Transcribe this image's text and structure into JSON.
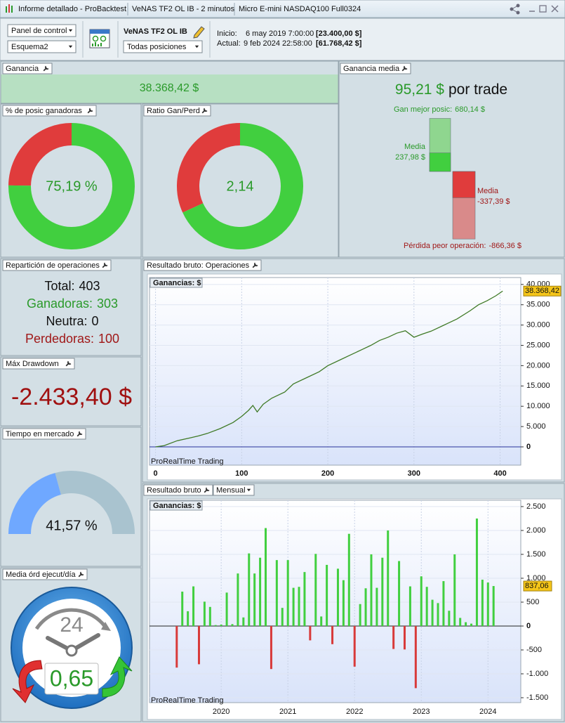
{
  "window": {
    "title": "Informe detallado - ProBacktest",
    "system": "VeNAS TF2 OL IB - 2 minutos",
    "instrument": "Micro E-mini NASDAQ100 Full0324"
  },
  "toolbar": {
    "panel_select": "Panel de control",
    "scheme_select": "Esquema2",
    "system_name": "VeNAS TF2 OL IB",
    "positions_select": "Todas posiciones",
    "start_label": "Inicio:",
    "start_date": "6 may 2019 7:00:00",
    "start_capital": "[23.400,00 $]",
    "current_label": "Actual:",
    "current_date": "9 feb 2024 22:58:00",
    "current_capital": "[61.768,42 $]"
  },
  "gain": {
    "title": "Ganancia",
    "value": "38.368,42 $"
  },
  "avg_gain": {
    "title": "Ganancia media",
    "value": "95,21 $",
    "suffix": "por trade",
    "best": {
      "label": "Gan mejor posic:",
      "value": 680.14,
      "value_label": "680,14 $"
    },
    "avg_win": {
      "label": "Media",
      "value": 237.98,
      "value_label": "237,98 $"
    },
    "avg_loss": {
      "label": "Media",
      "value": -337.39,
      "value_label": "-337,39 $"
    },
    "worst": {
      "label": "Pérdida peor operación:",
      "value": -866.36,
      "value_label": "-866,36 $"
    }
  },
  "win_rate": {
    "type": "donut",
    "title": "% de posic ganadoras",
    "value": 75.19,
    "value_label": "75,19 %",
    "color": "#41cf3f",
    "rest_color": "#e03c3c"
  },
  "ratio": {
    "type": "donut-ratio",
    "title": "Ratio Gan/Perd",
    "value": 2.14,
    "value_label": "2,14",
    "color": "#41cf3f",
    "rest_color": "#e03c3c"
  },
  "trades": {
    "title": "Repartición de operaciones",
    "rows": [
      {
        "label": "Total:",
        "value": 403,
        "color": "#111111"
      },
      {
        "label": "Ganadoras:",
        "value": 303,
        "color": "#2a9a2a"
      },
      {
        "label": "Neutra:",
        "value": 0,
        "color": "#111111"
      },
      {
        "label": "Perdedoras:",
        "value": 100,
        "color": "#a01818"
      }
    ]
  },
  "drawdown": {
    "title": "Máx Drawdown",
    "value": "-2.433,40 $"
  },
  "market_time": {
    "type": "gauge",
    "title": "Tiempo en mercado",
    "value": 41.57,
    "value_label": "41,57 %",
    "color": "#6fa8ff",
    "rest_color": "#a9c3cf"
  },
  "orders_per_day": {
    "title": "Media órd ejecut/día",
    "clock_label": "24",
    "value": "0,65"
  },
  "equity_chart": {
    "type": "line",
    "title": "Resultado bruto: Operaciones",
    "legend": "Ganancias: $",
    "watermark": "ProRealTime Trading",
    "x": [
      0,
      10,
      25,
      40,
      50,
      60,
      75,
      90,
      100,
      108,
      113,
      118,
      125,
      135,
      150,
      160,
      175,
      190,
      200,
      215,
      225,
      240,
      250,
      260,
      270,
      280,
      290,
      300,
      310,
      320,
      335,
      350,
      365,
      375,
      385,
      395,
      403
    ],
    "values": [
      0,
      300,
      1500,
      2200,
      2700,
      3300,
      4500,
      6000,
      7500,
      9000,
      10200,
      8600,
      10500,
      12000,
      13500,
      15500,
      17000,
      18500,
      20000,
      21500,
      22500,
      24000,
      25000,
      26200,
      27000,
      28000,
      28600,
      27000,
      27800,
      28500,
      30000,
      31500,
      33500,
      35000,
      36000,
      37200,
      38368.42
    ],
    "last_value_label": "38.368,42",
    "color": "#3f7a26",
    "zero_color": "#28309a",
    "xlim": [
      -7,
      424
    ],
    "ylim": [
      -4500,
      41700
    ],
    "xticks": [
      0,
      100,
      200,
      300,
      400
    ],
    "yticks": [
      0,
      {
        "value": 5000,
        "label": "5.000"
      },
      {
        "value": 10000,
        "label": "10.000"
      },
      {
        "value": 15000,
        "label": "15.000"
      },
      {
        "value": 20000,
        "label": "20.000"
      },
      {
        "value": 25000,
        "label": "25.000"
      },
      {
        "value": 30000,
        "label": "30.000"
      },
      {
        "value": 35000,
        "label": "35.000"
      },
      {
        "value": 40000,
        "label": "40.000"
      }
    ],
    "grid": true
  },
  "monthly_chart": {
    "type": "bar",
    "title": "Resultado bruto",
    "period_select": "Mensual",
    "legend": "Ganancias: $",
    "watermark": "ProRealTime Trading",
    "categories": [
      null,
      null,
      null,
      null,
      null,
      null,
      null,
      null,
      null,
      null,
      null,
      null,
      null,
      null,
      null,
      null,
      null,
      null,
      null,
      null,
      null,
      null,
      null,
      null,
      null,
      null,
      null,
      null,
      null,
      null,
      null,
      null,
      null,
      null,
      null,
      null,
      null,
      null,
      null,
      null,
      null,
      null,
      null,
      null,
      null,
      null,
      null,
      null,
      null,
      null,
      null,
      null,
      null,
      null,
      null,
      null,
      null,
      null
    ],
    "values": [
      -870,
      720,
      310,
      830,
      -800,
      510,
      400,
      20,
      30,
      700,
      40,
      1100,
      180,
      1520,
      1100,
      1430,
      2050,
      -900,
      1380,
      380,
      1380,
      800,
      820,
      1130,
      -300,
      1510,
      200,
      1280,
      -380,
      1200,
      960,
      1930,
      -850,
      460,
      790,
      1500,
      800,
      1430,
      2000,
      -480,
      1360,
      -490,
      830,
      -1300,
      1040,
      820,
      550,
      480,
      940,
      320,
      1500,
      170,
      80,
      50,
      2250,
      970,
      910,
      837.06
    ],
    "last_value_label": "837,06",
    "positive_color": "#41cf3f",
    "negative_color": "#d83a3a",
    "xlim": [
      -4.9,
      61.9
    ],
    "ylim": [
      -1603,
      2632
    ],
    "xticks": [
      {
        "value": 8,
        "label": "2020"
      },
      {
        "value": 20,
        "label": "2021"
      },
      {
        "value": 32,
        "label": "2022"
      },
      {
        "value": 44,
        "label": "2023"
      },
      {
        "value": 56,
        "label": "2024"
      }
    ],
    "yticks": [
      {
        "value": 2500,
        "label": "2.500"
      },
      {
        "value": 2000,
        "label": "2.000"
      },
      {
        "value": 1500,
        "label": "1.500"
      },
      {
        "value": 1000,
        "label": "1.000"
      },
      500,
      0,
      -500,
      {
        "value": -1000,
        "label": "-1.000"
      },
      {
        "value": -1500,
        "label": "-1.500"
      }
    ],
    "grid": true
  }
}
